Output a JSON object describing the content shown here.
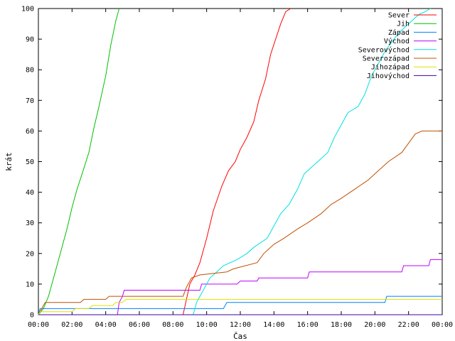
{
  "chart_data": {
    "type": "line",
    "title": "",
    "xlabel": "Čas",
    "ylabel": "krát",
    "xlim": [
      0,
      24
    ],
    "ylim": [
      0,
      100
    ],
    "x_tick_labels": [
      "00:00",
      "02:00",
      "04:00",
      "06:00",
      "08:00",
      "10:00",
      "12:00",
      "14:00",
      "16:00",
      "18:00",
      "20:00",
      "22:00",
      "00:00"
    ],
    "y_tick_labels": [
      "0",
      "10",
      "20",
      "30",
      "40",
      "50",
      "60",
      "70",
      "80",
      "90",
      "100"
    ],
    "grid": false,
    "legend_position": "top-right",
    "series": [
      {
        "name": "Sever",
        "color": "#ff0000",
        "points": [
          [
            0,
            0
          ],
          [
            8.6,
            0
          ],
          [
            9.0,
            10
          ],
          [
            9.3,
            13
          ],
          [
            9.6,
            17
          ],
          [
            10.0,
            25
          ],
          [
            10.4,
            34
          ],
          [
            10.9,
            42
          ],
          [
            11.3,
            47
          ],
          [
            11.7,
            50
          ],
          [
            12.0,
            54
          ],
          [
            12.4,
            58
          ],
          [
            12.8,
            63
          ],
          [
            13.1,
            70
          ],
          [
            13.5,
            77
          ],
          [
            13.8,
            85
          ],
          [
            14.1,
            90
          ],
          [
            14.4,
            95
          ],
          [
            14.7,
            99
          ],
          [
            15.0,
            100
          ]
        ]
      },
      {
        "name": "Jih",
        "color": "#00c000",
        "points": [
          [
            0,
            0
          ],
          [
            0.3,
            2
          ],
          [
            0.6,
            6
          ],
          [
            1.0,
            14
          ],
          [
            1.3,
            20
          ],
          [
            1.7,
            28
          ],
          [
            2.0,
            35
          ],
          [
            2.3,
            41
          ],
          [
            2.6,
            46
          ],
          [
            3.0,
            53
          ],
          [
            3.3,
            61
          ],
          [
            3.6,
            68
          ],
          [
            4.0,
            78
          ],
          [
            4.3,
            88
          ],
          [
            4.6,
            96
          ],
          [
            4.8,
            100
          ]
        ]
      },
      {
        "name": "Západ",
        "color": "#0080ff",
        "points": [
          [
            0,
            0
          ],
          [
            0.1,
            2
          ],
          [
            4.7,
            2
          ],
          [
            4.9,
            2
          ],
          [
            11.0,
            2
          ],
          [
            11.2,
            4
          ],
          [
            20.6,
            4
          ],
          [
            20.7,
            6
          ],
          [
            24,
            6
          ]
        ]
      },
      {
        "name": "Východ",
        "color": "#c000ff",
        "points": [
          [
            0,
            0
          ],
          [
            4.7,
            0
          ],
          [
            4.8,
            4
          ],
          [
            5.0,
            6
          ],
          [
            5.1,
            8
          ],
          [
            9.6,
            8
          ],
          [
            9.7,
            10
          ],
          [
            11.8,
            10
          ],
          [
            12.0,
            11
          ],
          [
            13.0,
            11
          ],
          [
            13.1,
            12
          ],
          [
            16.0,
            12
          ],
          [
            16.1,
            14
          ],
          [
            21.6,
            14
          ],
          [
            21.7,
            16
          ],
          [
            23.2,
            16
          ],
          [
            23.3,
            18
          ],
          [
            24,
            18
          ]
        ]
      },
      {
        "name": "Severovýchod",
        "color": "#00e0e0",
        "points": [
          [
            0,
            0
          ],
          [
            9.2,
            0
          ],
          [
            9.4,
            4
          ],
          [
            9.8,
            8
          ],
          [
            10.2,
            12
          ],
          [
            10.6,
            14
          ],
          [
            11.0,
            16
          ],
          [
            11.8,
            18
          ],
          [
            12.4,
            20
          ],
          [
            12.8,
            22
          ],
          [
            13.6,
            25
          ],
          [
            14.0,
            29
          ],
          [
            14.4,
            33
          ],
          [
            14.9,
            36
          ],
          [
            15.4,
            41
          ],
          [
            15.8,
            46
          ],
          [
            16.2,
            48
          ],
          [
            17.2,
            53
          ],
          [
            17.6,
            58
          ],
          [
            18.0,
            62
          ],
          [
            18.4,
            66
          ],
          [
            19.0,
            68
          ],
          [
            19.4,
            72
          ],
          [
            19.8,
            78
          ],
          [
            20.2,
            82
          ],
          [
            20.6,
            86
          ],
          [
            21.0,
            89
          ],
          [
            21.4,
            92
          ],
          [
            21.8,
            94
          ],
          [
            22.2,
            96
          ],
          [
            22.6,
            98
          ],
          [
            23.0,
            99
          ],
          [
            23.3,
            100
          ]
        ]
      },
      {
        "name": "Severozápad",
        "color": "#c05000",
        "points": [
          [
            0,
            0
          ],
          [
            0.2,
            2
          ],
          [
            0.4,
            4
          ],
          [
            2.5,
            4
          ],
          [
            2.7,
            5
          ],
          [
            4.0,
            5
          ],
          [
            4.2,
            6
          ],
          [
            8.6,
            6
          ],
          [
            8.8,
            9
          ],
          [
            9.1,
            12
          ],
          [
            9.6,
            13
          ],
          [
            11.2,
            14
          ],
          [
            11.6,
            15
          ],
          [
            13.0,
            17
          ],
          [
            13.4,
            20
          ],
          [
            14.0,
            23
          ],
          [
            14.6,
            25
          ],
          [
            15.4,
            28
          ],
          [
            16.0,
            30
          ],
          [
            16.8,
            33
          ],
          [
            17.4,
            36
          ],
          [
            18.0,
            38
          ],
          [
            18.8,
            41
          ],
          [
            19.6,
            44
          ],
          [
            20.2,
            47
          ],
          [
            20.8,
            50
          ],
          [
            21.6,
            53
          ],
          [
            22.0,
            56
          ],
          [
            22.4,
            59
          ],
          [
            22.8,
            60
          ],
          [
            24,
            60
          ]
        ]
      },
      {
        "name": "Jihozápad",
        "color": "#e0e000",
        "points": [
          [
            0,
            0
          ],
          [
            0.1,
            1
          ],
          [
            2.0,
            1
          ],
          [
            2.2,
            2
          ],
          [
            3.0,
            2
          ],
          [
            3.2,
            3
          ],
          [
            4.4,
            3
          ],
          [
            4.6,
            4
          ],
          [
            5.0,
            4
          ],
          [
            5.2,
            5
          ],
          [
            24,
            5
          ]
        ]
      },
      {
        "name": "Jihovýchod",
        "color": "#4000a0",
        "points": [
          [
            0,
            0
          ],
          [
            24,
            0
          ]
        ]
      }
    ]
  }
}
